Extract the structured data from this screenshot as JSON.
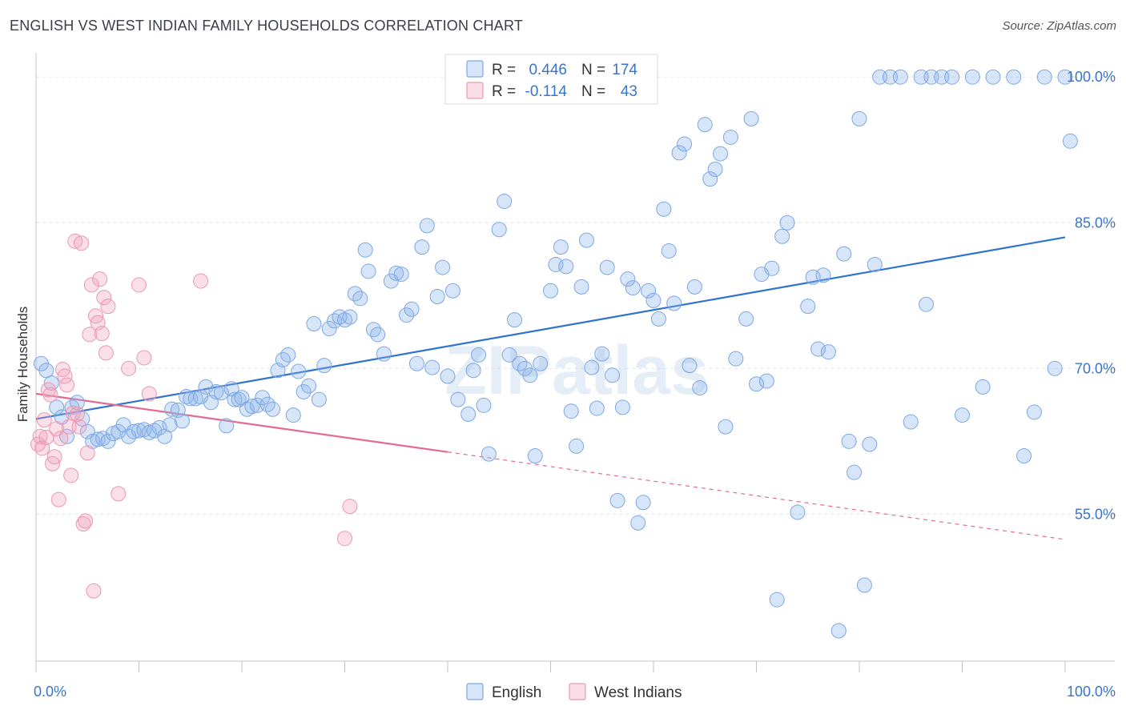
{
  "title": "ENGLISH VS WEST INDIAN FAMILY HOUSEHOLDS CORRELATION CHART",
  "source": "Source: ZipAtlas.com",
  "watermark": "ZIPatlas",
  "chart_data": {
    "type": "scatter",
    "xlabel": "",
    "ylabel": "Family Households",
    "xlim": [
      0,
      100
    ],
    "ylim": [
      40.2,
      101.5
    ],
    "x_tick_labels": [
      "0.0%",
      "100.0%"
    ],
    "y_tick_labels": [
      {
        "value": 100,
        "label": "100.0%"
      },
      {
        "value": 85,
        "label": "85.0%"
      },
      {
        "value": 70,
        "label": "70.0%"
      },
      {
        "value": 55,
        "label": "55.0%"
      }
    ],
    "legend": [
      {
        "name": "English",
        "r_label": "R =",
        "r": "0.446",
        "n_label": "N =",
        "n": "174",
        "color": "#8db4ec"
      },
      {
        "name": "West Indians",
        "r_label": "R =",
        "r": "-0.114",
        "n_label": "N =",
        "n": "43",
        "color": "#f2a3be"
      }
    ],
    "series": [
      {
        "name": "English",
        "color": "#8db4ec",
        "trend": {
          "x0": 0,
          "y0": 64.8,
          "x1": 100,
          "y1": 83.5,
          "color": "#2f73cf"
        },
        "points": [
          [
            0.5,
            70.5
          ],
          [
            1,
            69.8
          ],
          [
            1.5,
            68.5
          ],
          [
            2,
            66
          ],
          [
            2.5,
            65
          ],
          [
            3,
            63
          ],
          [
            3.5,
            66
          ],
          [
            4,
            66.5
          ],
          [
            4.5,
            64.8
          ],
          [
            5,
            63.5
          ],
          [
            5.5,
            62.5
          ],
          [
            6,
            62.7
          ],
          [
            6.5,
            62.8
          ],
          [
            7,
            62.5
          ],
          [
            7.5,
            63.3
          ],
          [
            8,
            63.5
          ],
          [
            8.5,
            64.2
          ],
          [
            9,
            63
          ],
          [
            9.5,
            63.5
          ],
          [
            10,
            63.6
          ],
          [
            10.5,
            63.7
          ],
          [
            11,
            63.4
          ],
          [
            11.5,
            63.6
          ],
          [
            12,
            63.9
          ],
          [
            12.5,
            63
          ],
          [
            13,
            64.2
          ],
          [
            13.2,
            65.8
          ],
          [
            13.8,
            65.7
          ],
          [
            14.2,
            64.6
          ],
          [
            14.6,
            67.1
          ],
          [
            15,
            66.9
          ],
          [
            15.5,
            66.9
          ],
          [
            16,
            67.1
          ],
          [
            16.5,
            68.1
          ],
          [
            17,
            66.5
          ],
          [
            17.5,
            67.6
          ],
          [
            18,
            67.5
          ],
          [
            18.5,
            64.1
          ],
          [
            19,
            67.9
          ],
          [
            19.3,
            66.8
          ],
          [
            19.7,
            66.8
          ],
          [
            20,
            67
          ],
          [
            20.5,
            65.8
          ],
          [
            21,
            66.1
          ],
          [
            21.5,
            66.2
          ],
          [
            22,
            67
          ],
          [
            22.5,
            66.3
          ],
          [
            23,
            65.8
          ],
          [
            23.5,
            69.8
          ],
          [
            24,
            70.9
          ],
          [
            24.5,
            71.4
          ],
          [
            25,
            65.2
          ],
          [
            25.5,
            69.7
          ],
          [
            26,
            67.6
          ],
          [
            26.5,
            68.2
          ],
          [
            27,
            74.6
          ],
          [
            27.5,
            66.8
          ],
          [
            28,
            70.3
          ],
          [
            28.5,
            74.1
          ],
          [
            29,
            74.9
          ],
          [
            29.5,
            75.3
          ],
          [
            30,
            75
          ],
          [
            30.5,
            75.3
          ],
          [
            31,
            77.7
          ],
          [
            31.5,
            77.2
          ],
          [
            32,
            82.2
          ],
          [
            32.3,
            80
          ],
          [
            32.8,
            74
          ],
          [
            33.2,
            73.5
          ],
          [
            33.8,
            71.5
          ],
          [
            34.5,
            79
          ],
          [
            35,
            79.8
          ],
          [
            35.5,
            79.7
          ],
          [
            36,
            75.5
          ],
          [
            36.5,
            76.1
          ],
          [
            37,
            70.5
          ],
          [
            37.5,
            82.5
          ],
          [
            38,
            84.7
          ],
          [
            38.5,
            70.1
          ],
          [
            39,
            77.4
          ],
          [
            39.5,
            80.4
          ],
          [
            40,
            69.2
          ],
          [
            40.5,
            78
          ],
          [
            41,
            66.8
          ],
          [
            42,
            65.3
          ],
          [
            42.5,
            69.8
          ],
          [
            43,
            71.4
          ],
          [
            43.5,
            66.2
          ],
          [
            44,
            61.2
          ],
          [
            45,
            84.3
          ],
          [
            45.5,
            87.2
          ],
          [
            46,
            71.4
          ],
          [
            46.5,
            75
          ],
          [
            47,
            70.5
          ],
          [
            47.5,
            70
          ],
          [
            48,
            69.3
          ],
          [
            48.5,
            61
          ],
          [
            49,
            70.5
          ],
          [
            50,
            78
          ],
          [
            50.5,
            80.7
          ],
          [
            51,
            82.5
          ],
          [
            51.5,
            80.5
          ],
          [
            52,
            65.6
          ],
          [
            52.5,
            62
          ],
          [
            53,
            78.4
          ],
          [
            53.5,
            83.2
          ],
          [
            54,
            70.1
          ],
          [
            54.5,
            65.9
          ],
          [
            55,
            71.5
          ],
          [
            55.5,
            80.4
          ],
          [
            56,
            69.3
          ],
          [
            56.5,
            56.4
          ],
          [
            57,
            66
          ],
          [
            57.5,
            79.2
          ],
          [
            58,
            78.3
          ],
          [
            58.5,
            54.1
          ],
          [
            59,
            56.2
          ],
          [
            59.5,
            78
          ],
          [
            60,
            77
          ],
          [
            60.5,
            75.1
          ],
          [
            61,
            86.4
          ],
          [
            61.5,
            82.1
          ],
          [
            62,
            76.7
          ],
          [
            62.5,
            92.2
          ],
          [
            63,
            93.1
          ],
          [
            63.5,
            70.3
          ],
          [
            64,
            78.4
          ],
          [
            64.5,
            68
          ],
          [
            65,
            95.1
          ],
          [
            65.5,
            89.5
          ],
          [
            66,
            90.5
          ],
          [
            66.5,
            92.1
          ],
          [
            67,
            64
          ],
          [
            67.5,
            93.8
          ],
          [
            68,
            71
          ],
          [
            69,
            75.1
          ],
          [
            69.5,
            95.7
          ],
          [
            70,
            68.4
          ],
          [
            70.5,
            79.7
          ],
          [
            71,
            68.7
          ],
          [
            71.5,
            80.3
          ],
          [
            72,
            46.2
          ],
          [
            72.5,
            83.6
          ],
          [
            73,
            85
          ],
          [
            74,
            55.2
          ],
          [
            75,
            76.4
          ],
          [
            75.5,
            79.4
          ],
          [
            76,
            72
          ],
          [
            76.5,
            79.6
          ],
          [
            77,
            71.7
          ],
          [
            78,
            43
          ],
          [
            78.5,
            81.8
          ],
          [
            79,
            62.5
          ],
          [
            79.5,
            59.3
          ],
          [
            80,
            95.7
          ],
          [
            80.5,
            47.7
          ],
          [
            81,
            62.2
          ],
          [
            81.5,
            80.7
          ],
          [
            82,
            100
          ],
          [
            83,
            100
          ],
          [
            84,
            100
          ],
          [
            85,
            64.5
          ],
          [
            86,
            100
          ],
          [
            86.5,
            76.6
          ],
          [
            87,
            100
          ],
          [
            88,
            100
          ],
          [
            89,
            100
          ],
          [
            90,
            65.2
          ],
          [
            91,
            100
          ],
          [
            92,
            68.1
          ],
          [
            93,
            100
          ],
          [
            95,
            100
          ],
          [
            96,
            61
          ],
          [
            97,
            65.5
          ],
          [
            98,
            100
          ],
          [
            99,
            70
          ],
          [
            100,
            100
          ],
          [
            100.5,
            93.4
          ]
        ]
      },
      {
        "name": "West Indians",
        "color": "#f2a3be",
        "trend": {
          "x0": 0,
          "y0": 67.4,
          "x1": 100,
          "y1": 52.4,
          "solid_until": 40,
          "color": "#e36b93"
        },
        "points": [
          [
            0.2,
            62.2
          ],
          [
            0.4,
            63
          ],
          [
            0.6,
            61.8
          ],
          [
            0.8,
            64.7
          ],
          [
            1,
            62.9
          ],
          [
            1.2,
            67.8
          ],
          [
            1.4,
            67.3
          ],
          [
            1.6,
            60.2
          ],
          [
            1.8,
            60.9
          ],
          [
            2,
            63.8
          ],
          [
            2.2,
            56.5
          ],
          [
            2.4,
            62.8
          ],
          [
            2.6,
            69.9
          ],
          [
            2.8,
            69.2
          ],
          [
            3,
            68.3
          ],
          [
            3.2,
            64
          ],
          [
            3.4,
            59
          ],
          [
            3.6,
            65.4
          ],
          [
            3.8,
            83.1
          ],
          [
            4,
            65.3
          ],
          [
            4.2,
            64
          ],
          [
            4.4,
            82.9
          ],
          [
            4.6,
            54
          ],
          [
            4.8,
            54.3
          ],
          [
            5,
            61.3
          ],
          [
            5.2,
            73.5
          ],
          [
            5.4,
            78.6
          ],
          [
            5.6,
            47.1
          ],
          [
            5.8,
            75.4
          ],
          [
            6,
            74.7
          ],
          [
            6.2,
            79.2
          ],
          [
            6.4,
            73.6
          ],
          [
            6.6,
            77.3
          ],
          [
            6.8,
            71.6
          ],
          [
            7,
            76.4
          ],
          [
            8,
            57.1
          ],
          [
            9,
            70
          ],
          [
            10,
            78.6
          ],
          [
            10.5,
            71.1
          ],
          [
            11,
            67.4
          ],
          [
            16,
            79
          ],
          [
            30,
            52.5
          ],
          [
            30.5,
            55.8
          ]
        ]
      }
    ]
  }
}
